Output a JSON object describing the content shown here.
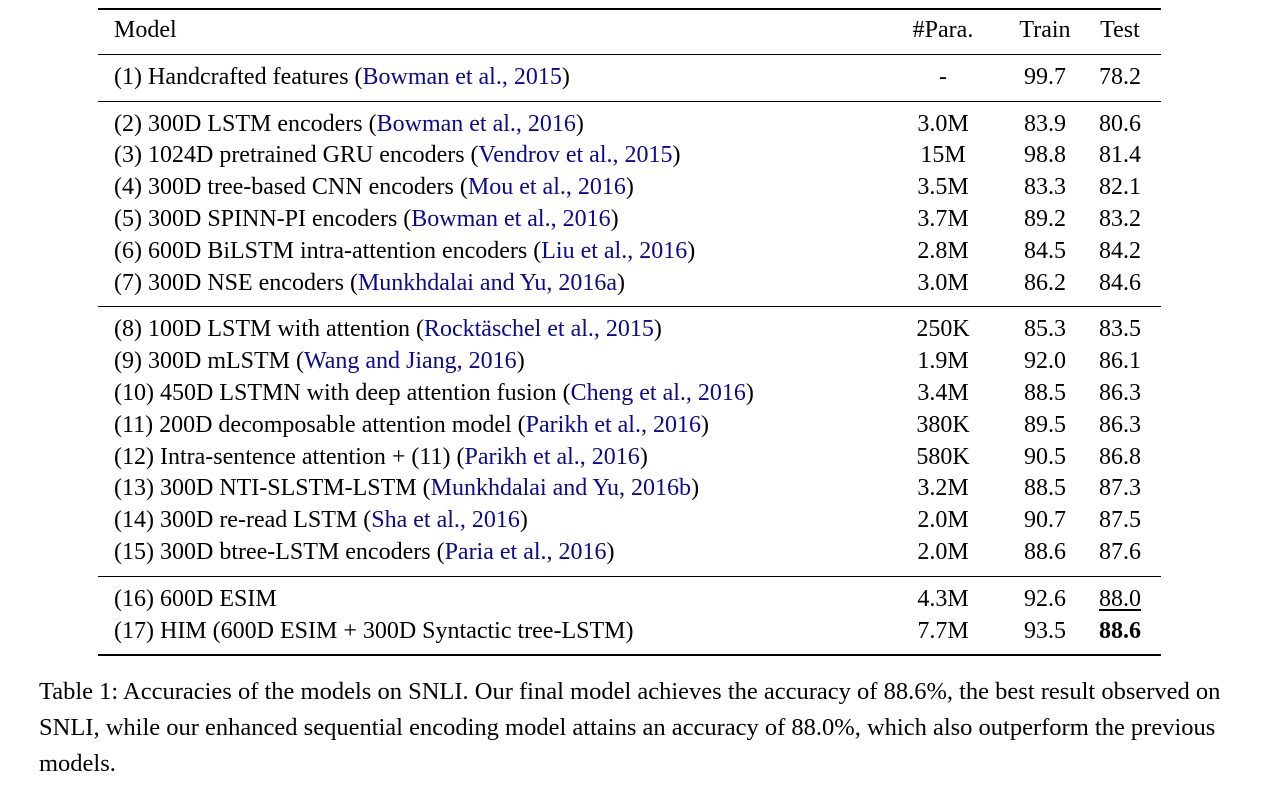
{
  "header": {
    "model": "Model",
    "para": "#Para.",
    "train": "Train",
    "test": "Test"
  },
  "groups": [
    [
      {
        "prefix": "(1) Handcrafted features (",
        "cite": "Bowman et al., 2015",
        "suffix": ")",
        "para": "-",
        "train": "99.7",
        "test": "78.2"
      }
    ],
    [
      {
        "prefix": "(2) 300D LSTM encoders (",
        "cite": "Bowman et al., 2016",
        "suffix": ")",
        "para": "3.0M",
        "train": "83.9",
        "test": "80.6"
      },
      {
        "prefix": "(3) 1024D pretrained GRU encoders (",
        "cite": "Vendrov et al., 2015",
        "suffix": ")",
        "para": "15M",
        "train": "98.8",
        "test": "81.4"
      },
      {
        "prefix": "(4) 300D tree-based CNN encoders (",
        "cite": "Mou et al., 2016",
        "suffix": ")",
        "para": "3.5M",
        "train": "83.3",
        "test": "82.1"
      },
      {
        "prefix": "(5) 300D SPINN-PI encoders (",
        "cite": "Bowman et al., 2016",
        "suffix": ")",
        "para": "3.7M",
        "train": "89.2",
        "test": "83.2"
      },
      {
        "prefix": "(6) 600D BiLSTM intra-attention encoders (",
        "cite": "Liu et al., 2016",
        "suffix": ")",
        "para": "2.8M",
        "train": "84.5",
        "test": "84.2"
      },
      {
        "prefix": "(7) 300D NSE encoders (",
        "cite": "Munkhdalai and Yu, 2016a",
        "suffix": ")",
        "para": "3.0M",
        "train": "86.2",
        "test": "84.6"
      }
    ],
    [
      {
        "prefix": "(8) 100D LSTM with attention (",
        "cite": "Rocktäschel et al., 2015",
        "suffix": ")",
        "para": "250K",
        "train": "85.3",
        "test": "83.5"
      },
      {
        "prefix": "(9) 300D mLSTM (",
        "cite": "Wang and Jiang, 2016",
        "suffix": ")",
        "para": "1.9M",
        "train": "92.0",
        "test": "86.1"
      },
      {
        "prefix": "(10) 450D LSTMN with deep attention fusion (",
        "cite": "Cheng et al., 2016",
        "suffix": ")",
        "para": "3.4M",
        "train": "88.5",
        "test": "86.3"
      },
      {
        "prefix": "(11) 200D decomposable attention model (",
        "cite": "Parikh et al., 2016",
        "suffix": ")",
        "para": "380K",
        "train": "89.5",
        "test": "86.3"
      },
      {
        "prefix": "(12) Intra-sentence attention + (11) (",
        "cite": "Parikh et al., 2016",
        "suffix": ")",
        "para": "580K",
        "train": "90.5",
        "test": "86.8"
      },
      {
        "prefix": "(13) 300D NTI-SLSTM-LSTM (",
        "cite": "Munkhdalai and Yu, 2016b",
        "suffix": ")",
        "para": "3.2M",
        "train": "88.5",
        "test": "87.3"
      },
      {
        "prefix": "(14) 300D re-read LSTM (",
        "cite": "Sha et al., 2016",
        "suffix": ")",
        "para": "2.0M",
        "train": "90.7",
        "test": "87.5"
      },
      {
        "prefix": "(15) 300D btree-LSTM encoders (",
        "cite": "Paria et al., 2016",
        "suffix": ")",
        "para": "2.0M",
        "train": "88.6",
        "test": "87.6"
      }
    ],
    [
      {
        "prefix": "(16) 600D ESIM",
        "cite": "",
        "suffix": "",
        "para": "4.3M",
        "train": "92.6",
        "test": "88.0",
        "test_style": "second"
      },
      {
        "prefix": "(17) HIM (600D ESIM + 300D Syntactic tree-LSTM)",
        "cite": "",
        "suffix": "",
        "para": "7.7M",
        "train": "93.5",
        "test": "88.6",
        "test_style": "best"
      }
    ]
  ],
  "caption": "Table 1: Accuracies of the models on SNLI. Our final model achieves the accuracy of 88.6%, the best result observed on SNLI, while our enhanced sequential encoding model attains an accuracy of 88.0%, which also outperform the previous models.",
  "colors": {
    "citation": "#0a0a8c",
    "text": "#000000"
  }
}
